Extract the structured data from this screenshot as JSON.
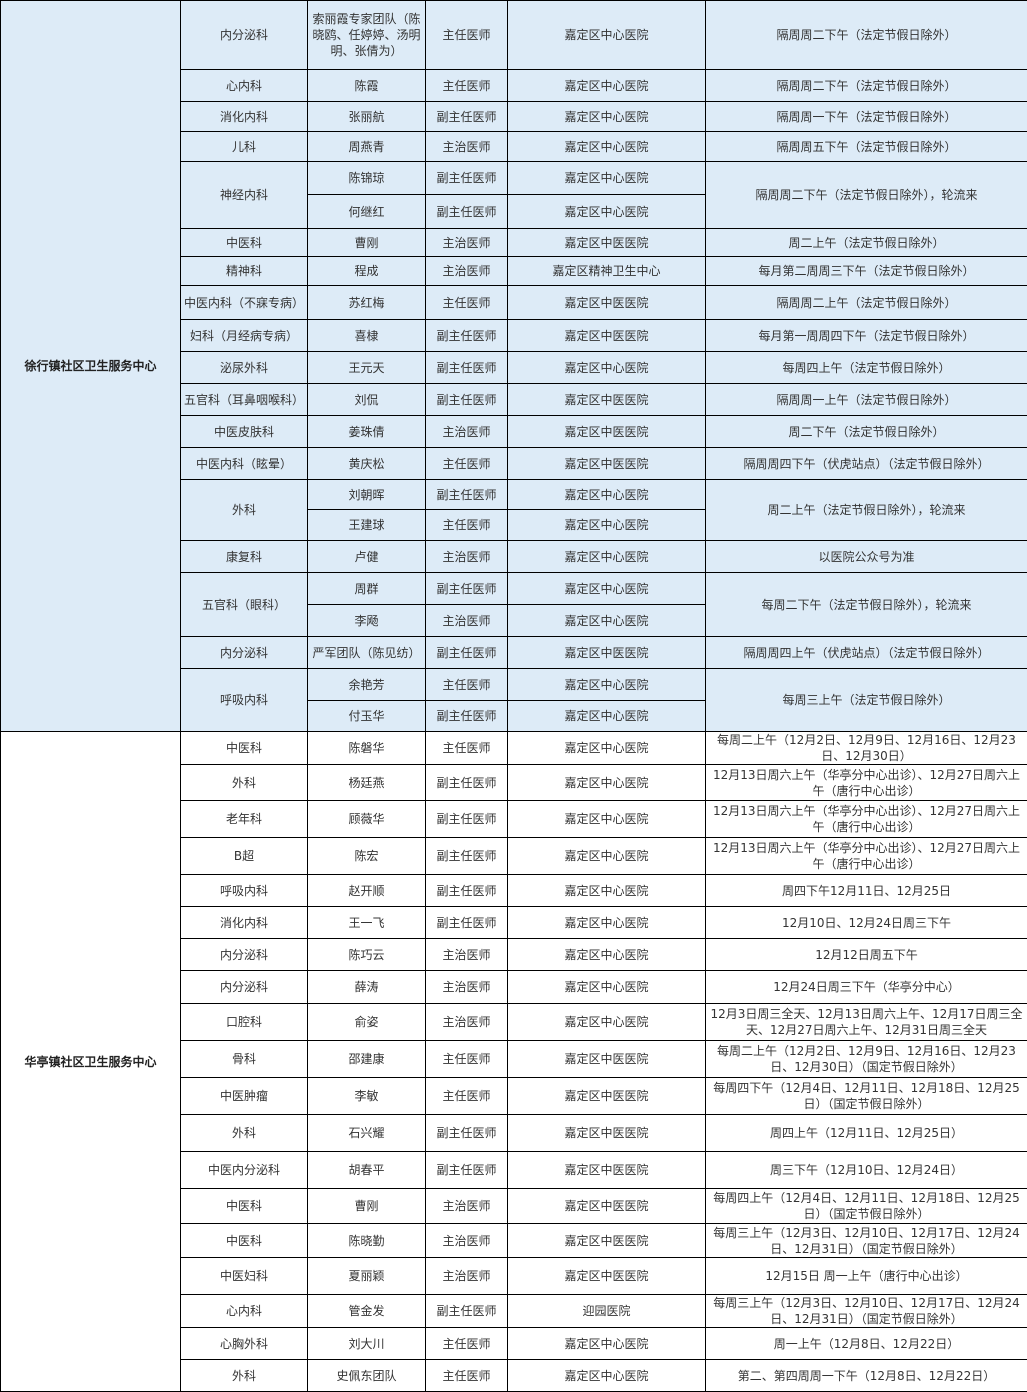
{
  "colors": {
    "section1_background": "#ddebf7",
    "section2_background": "#ffffff",
    "border": "#000000"
  },
  "sections": [
    {
      "center": "徐行镇社区卫生服务中心",
      "groups": [
        {
          "dept": "内分泌科",
          "schedule": "隔周周二下午（法定节假日除外）",
          "doctors": [
            {
              "name": "索丽霞专家团队（陈晓鸥、任婷婷、汤明明、张倩为）",
              "title": "主任医师",
              "hospital": "嘉定区中心医院"
            }
          ]
        },
        {
          "dept": "心内科",
          "schedule": "隔周周二下午（法定节假日除外）",
          "doctors": [
            {
              "name": "陈霞",
              "title": "主任医师",
              "hospital": "嘉定区中心医院"
            }
          ]
        },
        {
          "dept": "消化内科",
          "schedule": "隔周周一下午（法定节假日除外）",
          "doctors": [
            {
              "name": "张丽航",
              "title": "副主任医师",
              "hospital": "嘉定区中心医院"
            }
          ]
        },
        {
          "dept": "儿科",
          "schedule": "隔周周五下午（法定节假日除外）",
          "doctors": [
            {
              "name": "周燕青",
              "title": "主治医师",
              "hospital": "嘉定区中心医院"
            }
          ]
        },
        {
          "dept": "神经内科",
          "schedule": "隔周周二下午（法定节假日除外），轮流来",
          "doctors": [
            {
              "name": "陈锦琼",
              "title": "副主任医师",
              "hospital": "嘉定区中心医院"
            },
            {
              "name": "何继红",
              "title": "副主任医师",
              "hospital": "嘉定区中心医院"
            }
          ]
        },
        {
          "dept": "中医科",
          "schedule": "周二上午（法定节假日除外）",
          "doctors": [
            {
              "name": "曹刚",
              "title": "主治医师",
              "hospital": "嘉定区中医医院"
            }
          ]
        },
        {
          "dept": "精神科",
          "schedule": "每月第二周周三下午（法定节假日除外）",
          "doctors": [
            {
              "name": "程成",
              "title": "主治医师",
              "hospital": "嘉定区精神卫生中心"
            }
          ]
        },
        {
          "dept": "中医内科（不寐专病）",
          "schedule": "隔周周二上午（法定节假日除外）",
          "doctors": [
            {
              "name": "苏红梅",
              "title": "主任医师",
              "hospital": "嘉定区中医医院"
            }
          ]
        },
        {
          "dept": "妇科（月经病专病）",
          "schedule": "每月第一周周四下午（法定节假日除外）",
          "doctors": [
            {
              "name": "喜棣",
              "title": "副主任医师",
              "hospital": "嘉定区中医医院"
            }
          ]
        },
        {
          "dept": "泌尿外科",
          "schedule": "每周四上午（法定节假日除外）",
          "doctors": [
            {
              "name": "王元天",
              "title": "副主任医师",
              "hospital": "嘉定区中心医院"
            }
          ]
        },
        {
          "dept": "五官科（耳鼻咽喉科）",
          "schedule": "隔周周一上午（法定节假日除外）",
          "doctors": [
            {
              "name": "刘侃",
              "title": "副主任医师",
              "hospital": "嘉定区中医医院"
            }
          ]
        },
        {
          "dept": "中医皮肤科",
          "schedule": "周二下午（法定节假日除外）",
          "doctors": [
            {
              "name": "姜珠倩",
              "title": "主治医师",
              "hospital": "嘉定区中医医院"
            }
          ]
        },
        {
          "dept": "中医内科（眩晕）",
          "schedule": "隔周周四下午（伏虎站点）（法定节假日除外）",
          "doctors": [
            {
              "name": "黄庆松",
              "title": "主任医师",
              "hospital": "嘉定区中医医院"
            }
          ]
        },
        {
          "dept": "外科",
          "schedule": "周二上午（法定节假日除外），轮流来",
          "doctors": [
            {
              "name": "刘朝晖",
              "title": "副主任医师",
              "hospital": "嘉定区中心医院"
            },
            {
              "name": "王建球",
              "title": "主任医师",
              "hospital": "嘉定区中心医院"
            }
          ]
        },
        {
          "dept": "康复科",
          "schedule": "以医院公众号为准",
          "doctors": [
            {
              "name": "卢健",
              "title": "主治医师",
              "hospital": "嘉定区中心医院"
            }
          ]
        },
        {
          "dept": "五官科（眼科）",
          "schedule": "每周二下午（法定节假日除外），轮流来",
          "doctors": [
            {
              "name": "周群",
              "title": "副主任医师",
              "hospital": "嘉定区中心医院"
            },
            {
              "name": "李飏",
              "title": "主治医师",
              "hospital": "嘉定区中心医院"
            }
          ]
        },
        {
          "dept": "内分泌科",
          "schedule": "隔周周四上午（伏虎站点）（法定节假日除外）",
          "doctors": [
            {
              "name": "严军团队（陈见纺）",
              "title": "副主任医师",
              "hospital": "嘉定区中医医院"
            }
          ]
        },
        {
          "dept": "呼吸内科",
          "schedule": "每周三上午（法定节假日除外）",
          "doctors": [
            {
              "name": "余艳芳",
              "title": "主任医师",
              "hospital": "嘉定区中心医院"
            },
            {
              "name": "付玉华",
              "title": "副主任医师",
              "hospital": "嘉定区中心医院"
            }
          ]
        }
      ]
    },
    {
      "center": "华亭镇社区卫生服务中心",
      "groups": [
        {
          "dept": "中医科",
          "schedule": "每周二上午（12月2日、12月9日、12月16日、12月23日、12月30日）",
          "doctors": [
            {
              "name": "陈磐华",
              "title": "主任医师",
              "hospital": "嘉定区中心医院"
            }
          ]
        },
        {
          "dept": "外科",
          "schedule": "12月13日周六上午（华亭分中心出诊）、12月27日周六上午（唐行中心出诊）",
          "doctors": [
            {
              "name": "杨廷燕",
              "title": "副主任医师",
              "hospital": "嘉定区中心医院"
            }
          ]
        },
        {
          "dept": "老年科",
          "schedule": "12月13日周六上午（华亭分中心出诊）、12月27日周六上午（唐行中心出诊）",
          "doctors": [
            {
              "name": "顾薇华",
              "title": "副主任医师",
              "hospital": "嘉定区中心医院"
            }
          ]
        },
        {
          "dept": "B超",
          "schedule": "12月13日周六上午（华亭分中心出诊）、12月27日周六上午（唐行中心出诊）",
          "doctors": [
            {
              "name": "陈宏",
              "title": "副主任医师",
              "hospital": "嘉定区中心医院"
            }
          ]
        },
        {
          "dept": "呼吸内科",
          "schedule": "周四下午12月11日、12月25日",
          "doctors": [
            {
              "name": "赵开顺",
              "title": "副主任医师",
              "hospital": "嘉定区中心医院"
            }
          ]
        },
        {
          "dept": "消化内科",
          "schedule": "12月10日、12月24日周三下午",
          "doctors": [
            {
              "name": "王一飞",
              "title": "副主任医师",
              "hospital": "嘉定区中心医院"
            }
          ]
        },
        {
          "dept": "内分泌科",
          "schedule": "12月12日周五下午",
          "doctors": [
            {
              "name": "陈巧云",
              "title": "主治医师",
              "hospital": "嘉定区中心医院"
            }
          ]
        },
        {
          "dept": "内分泌科",
          "schedule": "12月24日周三下午（华亭分中心）",
          "doctors": [
            {
              "name": "薛涛",
              "title": "主治医师",
              "hospital": "嘉定区中心医院"
            }
          ]
        },
        {
          "dept": "口腔科",
          "schedule": "12月3日周三全天、12月13日周六上午、12月17日周三全天、12月27日周六上午、12月31日周三全天",
          "doctors": [
            {
              "name": "俞姿",
              "title": "主治医师",
              "hospital": "嘉定区中心医院"
            }
          ]
        },
        {
          "dept": "骨科",
          "schedule": "每周二上午（12月2日、12月9日、12月16日、12月23日、12月30日）（国定节假日除外）",
          "doctors": [
            {
              "name": "邵建康",
              "title": "主任医师",
              "hospital": "嘉定区中医医院"
            }
          ]
        },
        {
          "dept": "中医肿瘤",
          "schedule": "每周四下午（12月4日、12月11日、12月18日、12月25日）（国定节假日除外）",
          "doctors": [
            {
              "name": "李敏",
              "title": "主任医师",
              "hospital": "嘉定区中医医院"
            }
          ]
        },
        {
          "dept": "外科",
          "schedule": "周四上午（12月11日、12月25日）",
          "doctors": [
            {
              "name": "石兴耀",
              "title": "副主任医师",
              "hospital": "嘉定区中医医院"
            }
          ]
        },
        {
          "dept": "中医内分泌科",
          "schedule": "周三下午（12月10日、12月24日）",
          "doctors": [
            {
              "name": "胡春平",
              "title": "副主任医师",
              "hospital": "嘉定区中医医院"
            }
          ]
        },
        {
          "dept": "中医科",
          "schedule": "每周四上午（12月4日、12月11日、12月18日、12月25日）（国定节假日除外）",
          "doctors": [
            {
              "name": "曹刚",
              "title": "主治医师",
              "hospital": "嘉定区中医医院"
            }
          ]
        },
        {
          "dept": "中医科",
          "schedule": "每周三上午（12月3日、12月10日、12月17日、12月24日、12月31日）（国定节假日除外）",
          "doctors": [
            {
              "name": "陈晓勤",
              "title": "主治医师",
              "hospital": "嘉定区中医医院"
            }
          ]
        },
        {
          "dept": "中医妇科",
          "schedule": "12月15日 周一上午（唐行中心出诊）",
          "doctors": [
            {
              "name": "夏丽颖",
              "title": "主治医师",
              "hospital": "嘉定区中医医院"
            }
          ]
        },
        {
          "dept": "心内科",
          "schedule": "每周三上午（12月3日、12月10日、12月17日、12月24日、12月31日）（国定节假日除外）",
          "doctors": [
            {
              "name": "管金发",
              "title": "副主任医师",
              "hospital": "迎园医院"
            }
          ]
        },
        {
          "dept": "心胸外科",
          "schedule": "周一上午（12月8日、12月22日）",
          "doctors": [
            {
              "name": "刘大川",
              "title": "主任医师",
              "hospital": "嘉定区中心医院"
            }
          ]
        },
        {
          "dept": "外科",
          "schedule": "第二、第四周周一下午（12月8日、12月22日）",
          "doctors": [
            {
              "name": "史佩东团队",
              "title": "主任医师",
              "hospital": "嘉定区中心医院"
            }
          ]
        }
      ]
    }
  ]
}
